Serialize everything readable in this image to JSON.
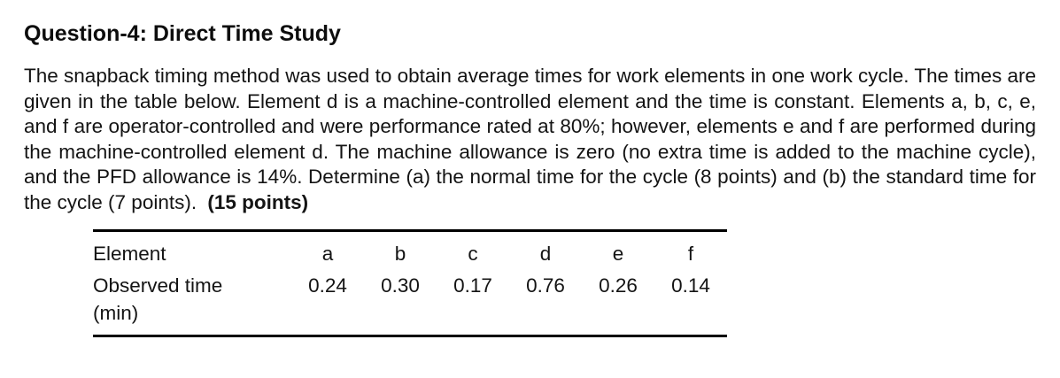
{
  "document": {
    "title": "Question-4: Direct Time Study",
    "paragraph": "The snapback timing method was used to obtain average times for work elements in one work cycle. The times are given in the table below. Element d is a machine-controlled element and the time is constant. Elements a, b, c, e, and f are operator-controlled and were performance rated at 80%; however, elements e and f are performed during the machine-controlled element d. The machine allowance is zero (no extra time is added to the machine cycle), and the PFD allowance is 14%. Determine (a) the normal time for the cycle (8 points) and (b) the standard time for the cycle (7 points).",
    "total_points": "(15 points)"
  },
  "table": {
    "header": {
      "label": "Element",
      "columns": [
        "a",
        "b",
        "c",
        "d",
        "e",
        "f"
      ]
    },
    "row": {
      "label_line1": "Observed time",
      "label_line2": "(min)",
      "values": [
        "0.24",
        "0.30",
        "0.17",
        "0.76",
        "0.26",
        "0.14"
      ]
    }
  },
  "colors": {
    "text": "#141414",
    "background": "#ffffff",
    "table_rule": "#000000"
  }
}
